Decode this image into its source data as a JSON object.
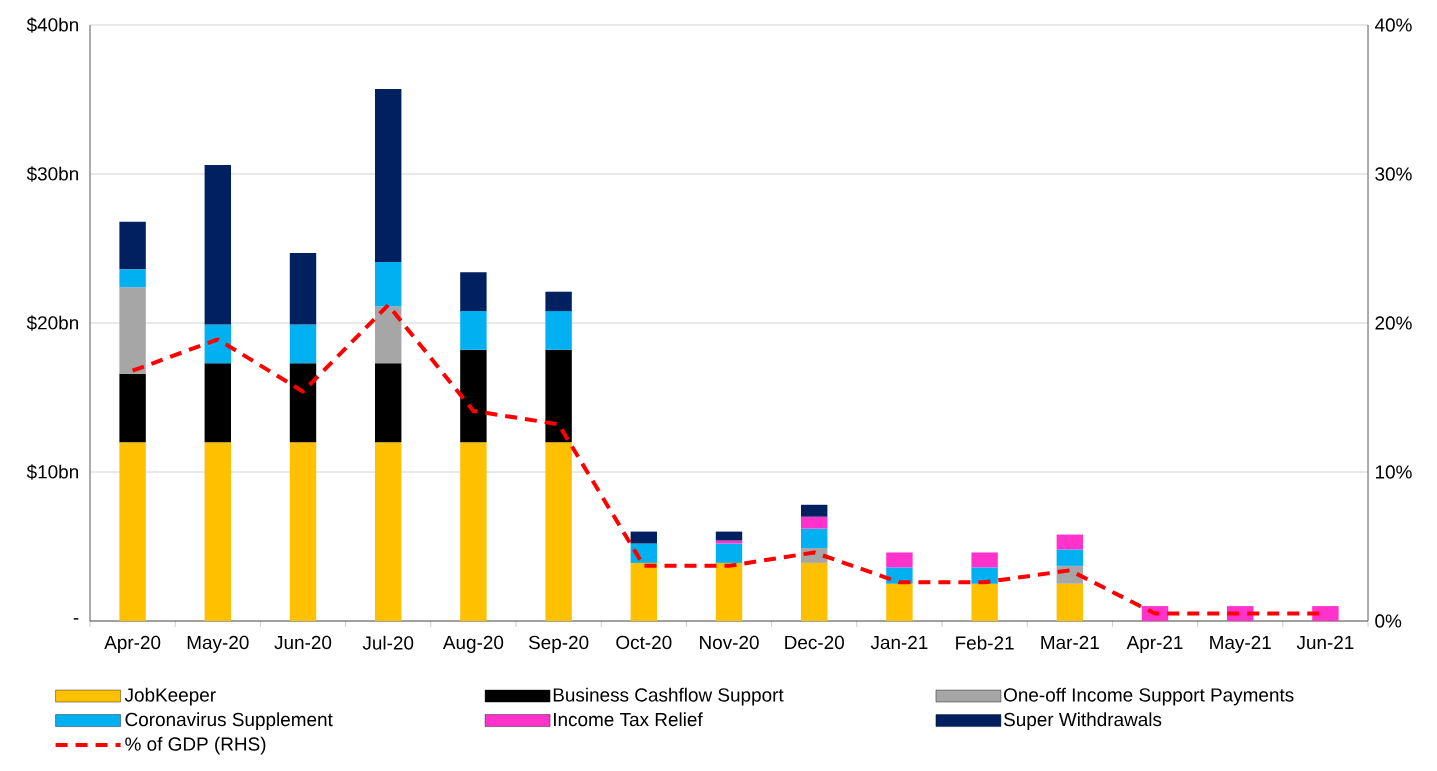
{
  "chart_data": {
    "type": "bar",
    "stacked": true,
    "categories": [
      "Apr-20",
      "May-20",
      "Jun-20",
      "Jul-20",
      "Aug-20",
      "Sep-20",
      "Oct-20",
      "Nov-20",
      "Dec-20",
      "Jan-21",
      "Feb-21",
      "Mar-21",
      "Apr-21",
      "May-21",
      "Jun-21"
    ],
    "series": [
      {
        "name": "JobKeeper",
        "color": "#ffc000",
        "values": [
          12.0,
          12.0,
          12.0,
          12.0,
          12.0,
          12.0,
          3.9,
          3.9,
          3.9,
          2.5,
          2.5,
          2.5,
          null,
          null,
          null
        ]
      },
      {
        "name": "Business Cashflow Support",
        "color": "#000000",
        "values": [
          4.6,
          5.3,
          5.3,
          5.3,
          6.2,
          6.2,
          null,
          null,
          null,
          null,
          null,
          null,
          null,
          null,
          null
        ]
      },
      {
        "name": "One-off Income Support Payments",
        "color": "#a6a6a6",
        "values": [
          5.8,
          null,
          null,
          3.8,
          null,
          null,
          null,
          null,
          1.0,
          null,
          null,
          1.2,
          null,
          null,
          null
        ]
      },
      {
        "name": "Coronavirus Supplement",
        "color": "#00b0f0",
        "values": [
          1.2,
          2.6,
          2.6,
          3.0,
          2.6,
          2.6,
          1.3,
          1.3,
          1.3,
          1.1,
          1.1,
          1.1,
          null,
          null,
          null
        ]
      },
      {
        "name": "Income Tax Relief",
        "color": "#ff33cc",
        "values": [
          null,
          null,
          null,
          null,
          null,
          null,
          null,
          0.2,
          0.8,
          1.0,
          1.0,
          1.0,
          1.0,
          1.0,
          1.0
        ]
      },
      {
        "name": "Super Withdrawals",
        "color": "#002060",
        "values": [
          3.2,
          10.7,
          4.8,
          11.6,
          2.6,
          1.3,
          0.8,
          0.6,
          0.8,
          null,
          null,
          null,
          null,
          null,
          null
        ]
      },
      {
        "name": "% of GDP (RHS)",
        "type": "line",
        "axis": "y2",
        "color": "#ff0000",
        "line_style": "dashed",
        "values": [
          16.8,
          18.9,
          15.4,
          21.2,
          14.1,
          13.2,
          3.7,
          3.7,
          4.6,
          2.6,
          2.6,
          3.4,
          0.5,
          0.5,
          0.5
        ]
      }
    ],
    "ylim": [
      0,
      40
    ],
    "yticks": [
      {
        "value": 0,
        "label": "-"
      },
      {
        "value": 10,
        "label": "$10bn"
      },
      {
        "value": 20,
        "label": "$20bn"
      },
      {
        "value": 30,
        "label": "$30bn"
      },
      {
        "value": 40,
        "label": "$40bn"
      }
    ],
    "y2lim": [
      0,
      40
    ],
    "y2ticks": [
      {
        "value": 0,
        "label": "0%"
      },
      {
        "value": 10,
        "label": "10%"
      },
      {
        "value": 20,
        "label": "20%"
      },
      {
        "value": 30,
        "label": "30%"
      },
      {
        "value": 40,
        "label": "40%"
      }
    ],
    "grid": "y",
    "legend": "bottom",
    "marker": "none"
  }
}
